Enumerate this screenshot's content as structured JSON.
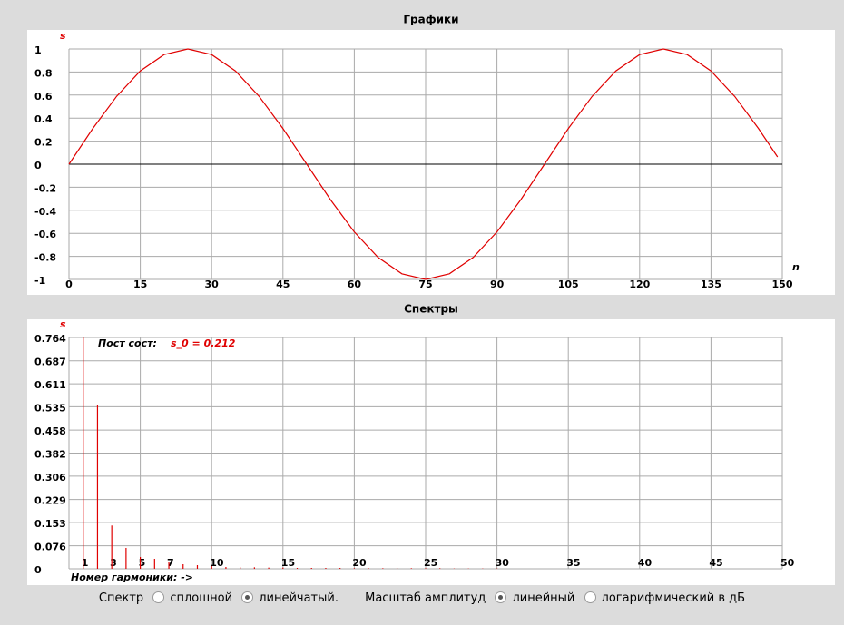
{
  "chart_data": [
    {
      "type": "line",
      "title": "Графики",
      "x_label": "n",
      "y_label": "s",
      "x": [
        0,
        5,
        10,
        15,
        20,
        25,
        30,
        35,
        40,
        45,
        50,
        55,
        60,
        65,
        70,
        75,
        80,
        85,
        90,
        95,
        100,
        105,
        110,
        115,
        120,
        125,
        130,
        135,
        140,
        145,
        149
      ],
      "series": [
        {
          "color": "#e00000",
          "values": [
            0,
            0.309,
            0.588,
            0.809,
            0.951,
            1,
            0.951,
            0.809,
            0.588,
            0.309,
            0,
            -0.309,
            -0.588,
            -0.809,
            -0.951,
            -1,
            -0.951,
            -0.809,
            -0.588,
            -0.309,
            0,
            0.309,
            0.588,
            0.809,
            0.951,
            1,
            0.951,
            0.809,
            0.588,
            0.309,
            0.063
          ]
        }
      ],
      "xlim": [
        0,
        150
      ],
      "ylim": [
        -1,
        1
      ],
      "xticks": [
        0,
        15,
        30,
        45,
        60,
        75,
        90,
        105,
        120,
        135,
        150
      ],
      "yticks": [
        -1,
        -0.8,
        -0.6,
        -0.4,
        -0.2,
        0,
        0.2,
        0.4,
        0.6,
        0.8,
        1
      ],
      "grid": true
    },
    {
      "type": "stem",
      "title": "Спектры",
      "x_label": "Номер гармоники: ->",
      "y_label": "s",
      "annotation": {
        "label": "Пост сост:",
        "value_text": "s_0 = 0.212"
      },
      "x": [
        1,
        2,
        3,
        4,
        5,
        6,
        7,
        8,
        9,
        10,
        11,
        12,
        13,
        14,
        15,
        16,
        17,
        18,
        19,
        20,
        21,
        22,
        23,
        24,
        25,
        26,
        27,
        28,
        29,
        30
      ],
      "color": "#e00000",
      "values": [
        0.764,
        0.54,
        0.143,
        0.069,
        0.039,
        0.033,
        0.021,
        0.015,
        0.012,
        0.009,
        0.006,
        0.005,
        0.005,
        0.004,
        0.004,
        0.003,
        0.003,
        0.003,
        0.003,
        0.002,
        0.002,
        0.002,
        0.002,
        0.002,
        0.002,
        0.002,
        0.001,
        0.001,
        0.001,
        0.001
      ],
      "xlim": [
        0,
        50
      ],
      "ylim": [
        0,
        0.764
      ],
      "xticks": [
        1,
        3,
        5,
        7,
        10,
        15,
        20,
        25,
        30,
        35,
        40,
        45,
        50
      ],
      "xgrid": [
        0,
        5,
        10,
        15,
        20,
        25,
        30,
        35,
        40,
        45,
        50
      ],
      "yticks": [
        0,
        0.076,
        0.153,
        0.229,
        0.306,
        0.382,
        0.458,
        0.535,
        0.611,
        0.687,
        0.764
      ],
      "grid": true
    }
  ],
  "controls": {
    "spectrum_label": "Спектр",
    "spectrum_options": [
      {
        "label": "сплошной",
        "checked": false
      },
      {
        "label": "линейчатый.",
        "checked": true
      }
    ],
    "scale_label": "Масштаб амплитуд",
    "scale_options": [
      {
        "label": "линейный",
        "checked": true
      },
      {
        "label": "логарифмический в дБ",
        "checked": false
      }
    ]
  }
}
